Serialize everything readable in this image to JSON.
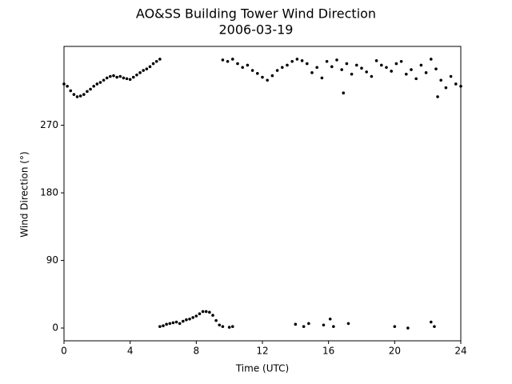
{
  "chart_data": {
    "type": "scatter",
    "title": "AO&SS Building Tower Wind Direction",
    "subtitle": "2006-03-19",
    "x_label": "Time (UTC)",
    "y_label": "Wind Direction (°)",
    "color": "#000000",
    "xlim": [
      0,
      24
    ],
    "xticks": [
      0,
      4,
      8,
      12,
      16,
      20,
      24
    ],
    "ylim": [
      -17,
      375
    ],
    "yticks": [
      0,
      90,
      180,
      270
    ],
    "x": [
      0,
      0.2,
      0.4,
      0.6,
      0.8,
      1.0,
      1.2,
      1.4,
      1.6,
      1.8,
      2.0,
      2.2,
      2.4,
      2.6,
      2.8,
      3.0,
      3.2,
      3.4,
      3.6,
      3.8,
      4.0,
      4.2,
      4.4,
      4.6,
      4.8,
      5.0,
      5.2,
      5.4,
      5.6,
      5.8,
      5.8,
      6.0,
      6.2,
      6.4,
      6.6,
      6.8,
      7.0,
      7.2,
      7.4,
      7.6,
      7.8,
      8.0,
      8.2,
      8.4,
      8.6,
      8.8,
      9.0,
      9.2,
      9.4,
      9.6,
      10.0,
      10.2,
      9.6,
      9.9,
      10.2,
      10.5,
      10.8,
      11.1,
      11.4,
      11.7,
      12.0,
      12.3,
      12.6,
      12.9,
      13.2,
      13.5,
      13.8,
      14.1,
      14.4,
      14.7,
      15.0,
      15.3,
      15.6,
      15.9,
      16.2,
      16.5,
      16.8,
      17.1,
      17.4,
      17.7,
      18.0,
      18.3,
      18.6,
      18.9,
      19.2,
      19.5,
      19.8,
      20.1,
      20.4,
      20.7,
      21.0,
      21.3,
      21.6,
      21.9,
      22.2,
      22.5,
      22.8,
      23.1,
      23.4,
      23.7,
      24.0,
      16.9,
      22.6,
      14.0,
      14.5,
      14.8,
      15.7,
      16.1,
      16.3,
      17.2,
      20.0,
      20.8,
      22.2,
      22.4
    ],
    "values": [
      325,
      322,
      316,
      311,
      308,
      309,
      311,
      315,
      318,
      322,
      325,
      327,
      330,
      333,
      335,
      336,
      334,
      335,
      333,
      332,
      331,
      334,
      337,
      340,
      343,
      345,
      348,
      352,
      355,
      358,
      2,
      3,
      5,
      6,
      7,
      8,
      6,
      9,
      11,
      12,
      14,
      16,
      19,
      22,
      22,
      21,
      17,
      10,
      4,
      2,
      1,
      2,
      357,
      355,
      358,
      352,
      347,
      350,
      343,
      339,
      334,
      330,
      336,
      343,
      347,
      350,
      355,
      358,
      356,
      352,
      340,
      347,
      333,
      355,
      348,
      357,
      344,
      352,
      338,
      350,
      346,
      341,
      335,
      356,
      350,
      347,
      342,
      352,
      355,
      338,
      344,
      332,
      350,
      340,
      358,
      345,
      330,
      320,
      335,
      325,
      322,
      313,
      308,
      5,
      2,
      6,
      4,
      12,
      2,
      6,
      2,
      0,
      8,
      2
    ]
  }
}
